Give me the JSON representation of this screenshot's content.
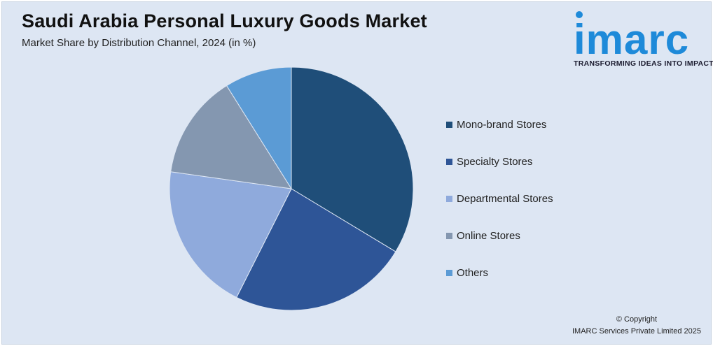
{
  "header": {
    "title": "Saudi Arabia Personal Luxury Goods Market",
    "subtitle": "Market Share by Distribution Channel, 2024 (in %)"
  },
  "logo": {
    "wordmark": "imarc",
    "tagline": "TRANSFORMING IDEAS INTO IMPACT",
    "color": "#1e8ad9"
  },
  "chart_data": {
    "type": "pie",
    "title": "Saudi Arabia Personal Luxury Goods Market",
    "subtitle": "Market Share by Distribution Channel, 2024 (in %)",
    "categories": [
      "Mono-brand Stores",
      "Specialty Stores",
      "Departmental Stores",
      "Online Stores",
      "Others"
    ],
    "values": [
      34,
      24,
      20,
      14,
      9
    ],
    "colors": [
      "#1f4e79",
      "#2e5597",
      "#8faadc",
      "#8497b0",
      "#5b9bd5"
    ],
    "start_angle_deg": 0,
    "direction": "clockwise",
    "legend_position": "right"
  },
  "footer": {
    "copyright_line1": "© Copyright",
    "copyright_line2": "IMARC Services Private Limited 2025"
  }
}
